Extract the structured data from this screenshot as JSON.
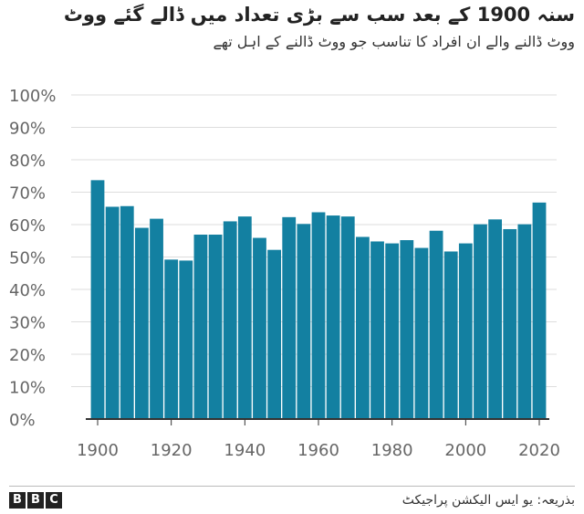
{
  "header": {
    "title": "سنہ 1900 کے بعد سب سے بڑی تعداد میں ڈالے گئے ووٹ",
    "subtitle": "ووٹ ڈالنے والے ان افراد کا تناسب جو ووٹ ڈالنے کے اہل تھے"
  },
  "footer": {
    "logo_letters": [
      "B",
      "B",
      "C"
    ],
    "source": "بذریعہ: یو ایس الیکشن پراجیکٹ"
  },
  "colors": {
    "bar": "#1380a1",
    "grid": "#dddddd",
    "axis": "#333333",
    "tick_text": "#666666"
  },
  "chart_data": {
    "type": "bar",
    "title": "سنہ 1900 کے بعد سب سے بڑی تعداد میں ڈالے گئے ووٹ",
    "subtitle": "ووٹ ڈالنے والے ان افراد کا تناسب جو ووٹ ڈالنے کے اہل تھے",
    "x": [
      1900,
      1904,
      1908,
      1912,
      1916,
      1920,
      1924,
      1928,
      1932,
      1936,
      1940,
      1944,
      1948,
      1952,
      1956,
      1960,
      1964,
      1968,
      1972,
      1976,
      1980,
      1984,
      1988,
      1992,
      1996,
      2000,
      2004,
      2008,
      2012,
      2016,
      2020
    ],
    "values": [
      73.7,
      65.5,
      65.7,
      59.0,
      61.8,
      49.2,
      48.9,
      56.9,
      56.9,
      61.0,
      62.5,
      55.9,
      52.2,
      62.3,
      60.2,
      63.8,
      62.8,
      62.5,
      56.2,
      54.8,
      54.2,
      55.2,
      52.8,
      58.1,
      51.7,
      54.2,
      60.1,
      61.6,
      58.6,
      60.1,
      66.8
    ],
    "xlabel": "",
    "ylabel": "",
    "ylim": [
      0,
      100
    ],
    "yticks": [
      "100%",
      "90%",
      "80%",
      "70%",
      "60%",
      "50%",
      "40%",
      "30%",
      "20%",
      "10%",
      "0%"
    ],
    "ytick_values": [
      100,
      90,
      80,
      70,
      60,
      50,
      40,
      30,
      20,
      10,
      0
    ],
    "xticks": [
      1900,
      1920,
      1940,
      1960,
      1980,
      2000,
      2020
    ],
    "grid": true,
    "legend": "none"
  }
}
